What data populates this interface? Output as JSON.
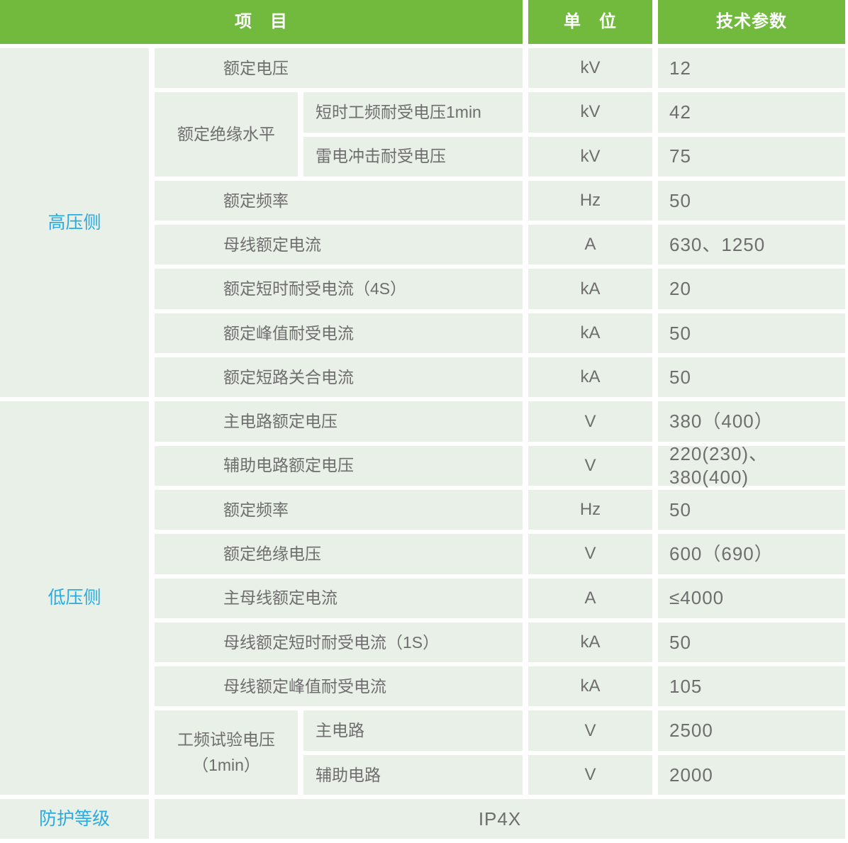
{
  "header": {
    "item": "项　目",
    "unit": "单　位",
    "param": "技术参数"
  },
  "sections": {
    "hv": {
      "label": "高压侧"
    },
    "lv": {
      "label": "低压侧"
    },
    "protection": {
      "label": "防护等级",
      "value": "IP4X"
    }
  },
  "rows": [
    {
      "item": "额定电压",
      "unit": "kV",
      "value": "12"
    },
    {
      "group": "额定绝缘水平",
      "item": "短时工频耐受电压1min",
      "unit": "kV",
      "value": "42"
    },
    {
      "item": "雷电冲击耐受电压",
      "unit": "kV",
      "value": "75"
    },
    {
      "item": "额定频率",
      "unit": "Hz",
      "value": "50"
    },
    {
      "item": "母线额定电流",
      "unit": "A",
      "value": "630、1250"
    },
    {
      "item": "额定短时耐受电流（4S）",
      "unit": "kA",
      "value": "20"
    },
    {
      "item": "额定峰值耐受电流",
      "unit": "kA",
      "value": "50"
    },
    {
      "item": "额定短路关合电流",
      "unit": "kA",
      "value": "50"
    },
    {
      "item": "主电路额定电压",
      "unit": "V",
      "value": "380（400）"
    },
    {
      "item": "辅助电路额定电压",
      "unit": "V",
      "value": "220(230)、380(400)"
    },
    {
      "item": "额定频率",
      "unit": "Hz",
      "value": "50"
    },
    {
      "item": "额定绝缘电压",
      "unit": "V",
      "value": "600（690）"
    },
    {
      "item": "主母线额定电流",
      "unit": "A",
      "value": "≤4000"
    },
    {
      "group": null,
      "item": "母线额定短时耐受电流（1S）",
      "unit": "kA",
      "value": "50"
    },
    {
      "item": "母线额定峰值耐受电流",
      "unit": "kA",
      "value": "105"
    },
    {
      "group": "工频试验电压\n（1min）",
      "item": "主电路",
      "unit": "V",
      "value": "2500"
    },
    {
      "item": "辅助电路",
      "unit": "V",
      "value": "2000"
    }
  ],
  "colors": {
    "header_green": "#72BA3E",
    "cell_background": "#E9F0E7",
    "accent_blue": "#29ABE2",
    "text_gray": "#6E6E6E"
  }
}
